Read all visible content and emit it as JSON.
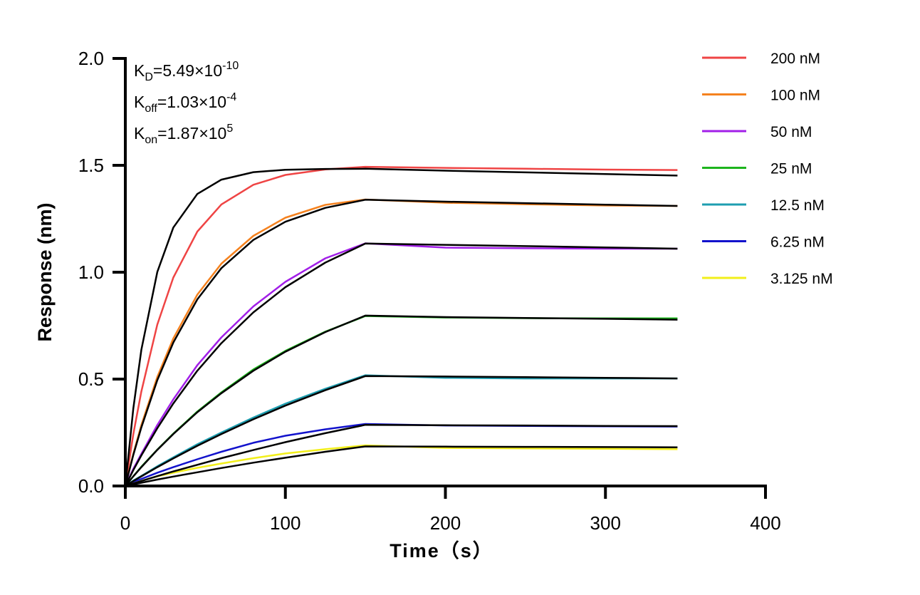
{
  "chart_data": {
    "type": "line",
    "xlabel": "Time（s）",
    "ylabel": "Response (nm)",
    "xlim": [
      0,
      400
    ],
    "ylim": [
      0,
      2.0
    ],
    "xticks": [
      "0",
      "100",
      "200",
      "300",
      "400"
    ],
    "yticks": [
      "0.0",
      "0.5",
      "1.0",
      "1.5",
      "2.0"
    ],
    "grid": false,
    "legend_position": "top-right",
    "annotations": [
      {
        "base": "K",
        "sub": "D",
        "value": "=5.49×10",
        "exp": "-10"
      },
      {
        "base": "K",
        "sub": "off",
        "value": "=1.03×10",
        "exp": "-4"
      },
      {
        "base": "K",
        "sub": "on",
        "value": "=1.87×10",
        "exp": "5"
      }
    ],
    "x": [
      0,
      5,
      10,
      20,
      30,
      45,
      60,
      80,
      100,
      125,
      150,
      200,
      250,
      300,
      345
    ],
    "series": [
      {
        "name": "200 nM",
        "color": "#ef4444",
        "values": [
          0,
          0.242,
          0.442,
          0.755,
          0.975,
          1.19,
          1.317,
          1.409,
          1.455,
          1.481,
          1.493,
          1.488,
          1.484,
          1.48,
          1.478
        ],
        "fit": [
          0,
          0.362,
          0.637,
          1.001,
          1.209,
          1.366,
          1.433,
          1.468,
          1.479,
          1.483,
          1.484,
          1.475,
          1.467,
          1.459,
          1.452
        ]
      },
      {
        "name": "100 nM",
        "color": "#f5821f",
        "values": [
          0,
          0.15,
          0.285,
          0.51,
          0.69,
          0.895,
          1.04,
          1.17,
          1.255,
          1.315,
          1.34,
          1.325,
          1.318,
          1.312,
          1.31
        ],
        "fit": [
          0,
          0.145,
          0.274,
          0.495,
          0.671,
          0.873,
          1.019,
          1.151,
          1.236,
          1.301,
          1.339,
          1.33,
          1.323,
          1.316,
          1.31
        ]
      },
      {
        "name": "50 nM",
        "color": "#a21fe8",
        "values": [
          0,
          0.08,
          0.15,
          0.285,
          0.405,
          0.565,
          0.695,
          0.84,
          0.955,
          1.065,
          1.135,
          1.115,
          1.112,
          1.11,
          1.11
        ],
        "fit": [
          0,
          0.074,
          0.143,
          0.27,
          0.386,
          0.539,
          0.668,
          0.812,
          0.93,
          1.045,
          1.134,
          1.128,
          1.122,
          1.116,
          1.11
        ]
      },
      {
        "name": "25 nM",
        "color": "#1db41d",
        "values": [
          0,
          0.045,
          0.09,
          0.17,
          0.245,
          0.348,
          0.438,
          0.545,
          0.632,
          0.722,
          0.795,
          0.788,
          0.785,
          0.784,
          0.784
        ],
        "fit": [
          0,
          0.045,
          0.088,
          0.169,
          0.243,
          0.345,
          0.434,
          0.539,
          0.628,
          0.72,
          0.797,
          0.79,
          0.786,
          0.782,
          0.778
        ]
      },
      {
        "name": "12.5 nM",
        "color": "#1e9eb0",
        "values": [
          0,
          0.025,
          0.047,
          0.092,
          0.134,
          0.195,
          0.25,
          0.32,
          0.385,
          0.455,
          0.518,
          0.506,
          0.503,
          0.503,
          0.503
        ],
        "fit": [
          0,
          0.023,
          0.045,
          0.088,
          0.129,
          0.188,
          0.243,
          0.312,
          0.376,
          0.448,
          0.514,
          0.512,
          0.509,
          0.506,
          0.503
        ]
      },
      {
        "name": "6.25 nM",
        "color": "#1212cc",
        "values": [
          0,
          0.018,
          0.033,
          0.062,
          0.088,
          0.125,
          0.16,
          0.202,
          0.235,
          0.265,
          0.29,
          0.283,
          0.281,
          0.279,
          0.278
        ],
        "fit": [
          0,
          0.012,
          0.023,
          0.046,
          0.068,
          0.099,
          0.13,
          0.168,
          0.205,
          0.247,
          0.286,
          0.284,
          0.283,
          0.281,
          0.28
        ]
      },
      {
        "name": "3.125 nM",
        "color": "#f2ef1a",
        "values": [
          0,
          0.012,
          0.024,
          0.045,
          0.062,
          0.085,
          0.105,
          0.13,
          0.152,
          0.172,
          0.19,
          0.178,
          0.176,
          0.174,
          0.172
        ],
        "fit": [
          0,
          0.0077,
          0.015,
          0.03,
          0.044,
          0.064,
          0.084,
          0.109,
          0.132,
          0.16,
          0.185,
          0.184,
          0.183,
          0.182,
          0.181
        ]
      }
    ],
    "fit_color": "#000000"
  }
}
